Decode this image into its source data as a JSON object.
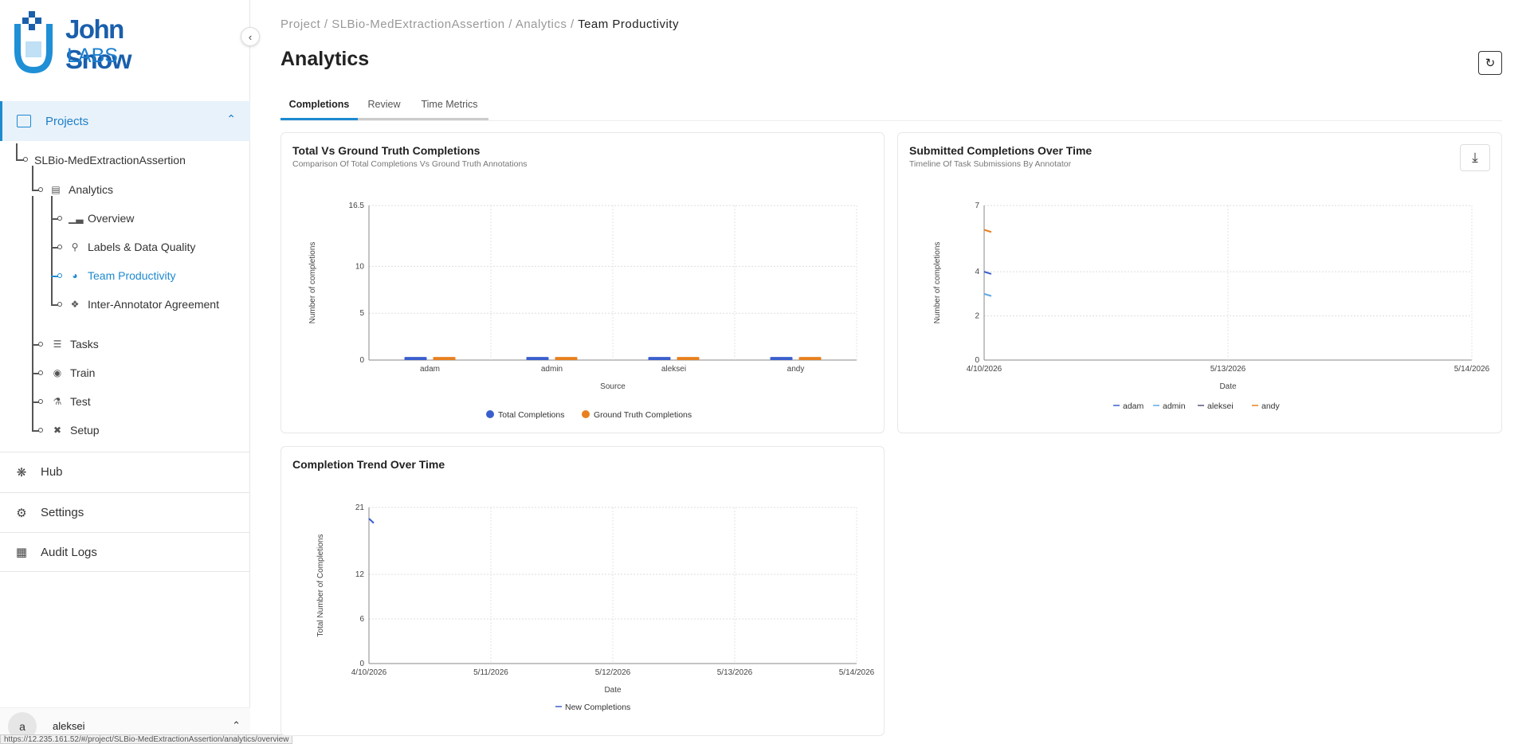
{
  "brand": {
    "line1": "John Snow",
    "line2": "LABS"
  },
  "sidebar": {
    "projects_label": "Projects",
    "project_name": "SLBio-MedExtractionAssertion",
    "analytics_label": "Analytics",
    "analytics_items": [
      {
        "label": "Overview",
        "icon": "bar-chart-icon"
      },
      {
        "label": "Labels & Data Quality",
        "icon": "pin-icon"
      },
      {
        "label": "Team Productivity",
        "icon": "gauge-icon",
        "active": true
      },
      {
        "label": "Inter-Annotator Agreement",
        "icon": "handshake-icon"
      }
    ],
    "project_items": [
      {
        "label": "Tasks",
        "icon": "tasks-icon"
      },
      {
        "label": "Train",
        "icon": "brain-icon"
      },
      {
        "label": "Test",
        "icon": "flask-icon"
      },
      {
        "label": "Setup",
        "icon": "tools-icon"
      }
    ],
    "sections": [
      {
        "label": "Hub",
        "icon": "hub-icon"
      },
      {
        "label": "Settings",
        "icon": "gear-icon"
      },
      {
        "label": "Audit Logs",
        "icon": "grid-icon"
      }
    ],
    "user": {
      "initial": "a",
      "name": "aleksei"
    },
    "status_url": "https://12.235.161.52/#/project/SLBio-MedExtractionAssertion/analytics/overview"
  },
  "breadcrumb": {
    "p1": "Project /",
    "p2": "SLBio-MedExtractionAssertion /",
    "p3": "Analytics /",
    "current": "Team Productivity"
  },
  "page_title": "Analytics",
  "tabs": [
    "Completions",
    "Review",
    "Time Metrics"
  ],
  "cards": {
    "total_vs_gt": {
      "title": "Total Vs Ground Truth Completions",
      "subtitle": "Comparison Of Total Completions Vs Ground Truth Annotations"
    },
    "submitted_over_time": {
      "title": "Submitted Completions Over Time",
      "subtitle": "Timeline Of Task Submissions By Annotator"
    },
    "trend": {
      "title": "Completion Trend Over Time"
    }
  },
  "chart_data": [
    {
      "type": "bar",
      "title": "Total Vs Ground Truth Completions",
      "xlabel": "Source",
      "ylabel": "Number of completions",
      "categories": [
        "adam",
        "admin",
        "aleksei",
        "andy"
      ],
      "yticks": [
        "0",
        "5",
        "10",
        "16.5"
      ],
      "ylim": [
        0,
        16.5
      ],
      "series": [
        {
          "name": "Total Completions",
          "color": "#3a5fcd",
          "values": [
            0.2,
            0.2,
            0.2,
            0.2
          ]
        },
        {
          "name": "Ground Truth Completions",
          "color": "#e8801f",
          "values": [
            0.2,
            0.2,
            0.2,
            0.2
          ]
        }
      ],
      "legend": "bottom",
      "grid": true
    },
    {
      "type": "line",
      "title": "Submitted Completions Over Time",
      "xlabel": "Date",
      "ylabel": "Number of completions",
      "xticks": [
        "4/10/2026",
        "5/13/2026",
        "5/14/2026"
      ],
      "yticks": [
        "0",
        "2",
        "4",
        "7"
      ],
      "ylim": [
        0,
        7
      ],
      "series": [
        {
          "name": "adam",
          "color": "#3a5fcd",
          "values": [
            4,
            3.9
          ]
        },
        {
          "name": "admin",
          "color": "#5fa8e8",
          "values": [
            3,
            2.9
          ]
        },
        {
          "name": "aleksei",
          "color": "#555577",
          "values": []
        },
        {
          "name": "andy",
          "color": "#e8801f",
          "values": [
            5.9,
            5.8
          ]
        }
      ],
      "legend": "bottom",
      "grid": true
    },
    {
      "type": "line",
      "title": "Completion Trend Over Time",
      "xlabel": "Date",
      "ylabel": "Total Number of Completions",
      "xticks": [
        "4/10/2026",
        "5/11/2026",
        "5/12/2026",
        "5/13/2026",
        "5/14/2026"
      ],
      "yticks": [
        "0",
        "6",
        "12",
        "21"
      ],
      "ylim": [
        0,
        21
      ],
      "series": [
        {
          "name": "New Completions",
          "color": "#3a5fcd",
          "values": [
            19.5,
            18.9
          ]
        }
      ],
      "legend": "bottom",
      "grid": true
    }
  ]
}
